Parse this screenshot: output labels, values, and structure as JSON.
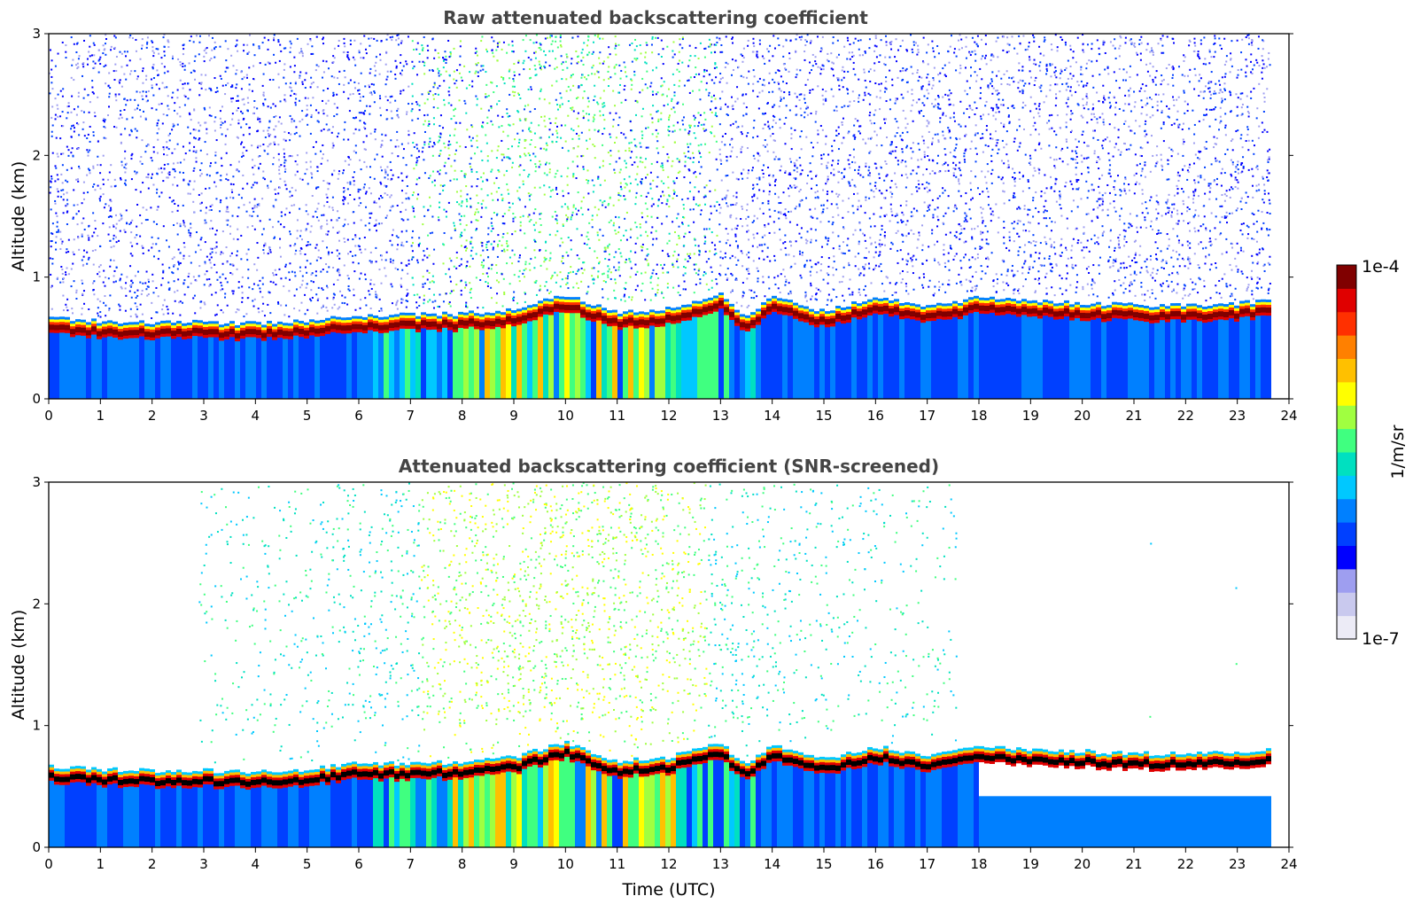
{
  "chart_data": [
    {
      "type": "heatmap",
      "title": "Raw attenuated backscattering coefficient",
      "xlabel": "",
      "ylabel": "Altitude (km)",
      "xlim": [
        0,
        24
      ],
      "ylim": [
        0,
        3
      ],
      "xticks": [
        "0",
        "1",
        "2",
        "3",
        "4",
        "5",
        "6",
        "7",
        "8",
        "9",
        "10",
        "11",
        "12",
        "13",
        "14",
        "15",
        "16",
        "17",
        "18",
        "19",
        "20",
        "21",
        "22",
        "23",
        "24"
      ],
      "yticks": [
        "0",
        "1",
        "2",
        "3"
      ],
      "data_end_hour": 23.7,
      "screened": false,
      "layer_top_km": [
        [
          0,
          0.67
        ],
        [
          1,
          0.64
        ],
        [
          2,
          0.63
        ],
        [
          3,
          0.63
        ],
        [
          4,
          0.62
        ],
        [
          5,
          0.64
        ],
        [
          6,
          0.69
        ],
        [
          7,
          0.69
        ],
        [
          8,
          0.7
        ],
        [
          9,
          0.74
        ],
        [
          10,
          0.86
        ],
        [
          11,
          0.71
        ],
        [
          12,
          0.74
        ],
        [
          13,
          0.86
        ],
        [
          13.5,
          0.67
        ],
        [
          14,
          0.85
        ],
        [
          15,
          0.72
        ],
        [
          16,
          0.83
        ],
        [
          17,
          0.76
        ],
        [
          18,
          0.83
        ],
        [
          19,
          0.8
        ],
        [
          20,
          0.79
        ],
        [
          21,
          0.77
        ],
        [
          22,
          0.77
        ],
        [
          23,
          0.78
        ],
        [
          23.7,
          0.82
        ]
      ]
    },
    {
      "type": "heatmap",
      "title": "Attenuated backscattering coefficient (SNR-screened)",
      "xlabel": "Time (UTC)",
      "ylabel": "Altitude (km)",
      "xlim": [
        0,
        24
      ],
      "ylim": [
        0,
        3
      ],
      "xticks": [
        "0",
        "1",
        "2",
        "3",
        "4",
        "5",
        "6",
        "7",
        "8",
        "9",
        "10",
        "11",
        "12",
        "13",
        "14",
        "15",
        "16",
        "17",
        "18",
        "19",
        "20",
        "21",
        "22",
        "23",
        "24"
      ],
      "yticks": [
        "0",
        "1",
        "2",
        "3"
      ],
      "data_end_hour": 23.7,
      "screened": true,
      "layer_top_km": [
        [
          0,
          0.67
        ],
        [
          1,
          0.64
        ],
        [
          2,
          0.63
        ],
        [
          3,
          0.63
        ],
        [
          4,
          0.62
        ],
        [
          5,
          0.64
        ],
        [
          6,
          0.69
        ],
        [
          7,
          0.69
        ],
        [
          8,
          0.7
        ],
        [
          9,
          0.74
        ],
        [
          10,
          0.86
        ],
        [
          11,
          0.71
        ],
        [
          12,
          0.74
        ],
        [
          13,
          0.86
        ],
        [
          13.5,
          0.67
        ],
        [
          14,
          0.85
        ],
        [
          15,
          0.72
        ],
        [
          16,
          0.83
        ],
        [
          17,
          0.76
        ],
        [
          18,
          0.83
        ],
        [
          19,
          0.8
        ],
        [
          20,
          0.79
        ],
        [
          21,
          0.77
        ],
        [
          22,
          0.77
        ],
        [
          23,
          0.78
        ],
        [
          23.7,
          0.82
        ]
      ]
    }
  ],
  "colorbar": {
    "label": "1/m/sr",
    "max_label": "1e-4",
    "min_label": "1e-7",
    "colors": [
      "#ecebf6",
      "#c9c9ee",
      "#9e9ef0",
      "#0000ff",
      "#0040ff",
      "#0080ff",
      "#00c8ff",
      "#00e0c0",
      "#40ff80",
      "#a0ff40",
      "#ffff00",
      "#ffc000",
      "#ff8000",
      "#ff3000",
      "#e00000",
      "#800000"
    ]
  }
}
